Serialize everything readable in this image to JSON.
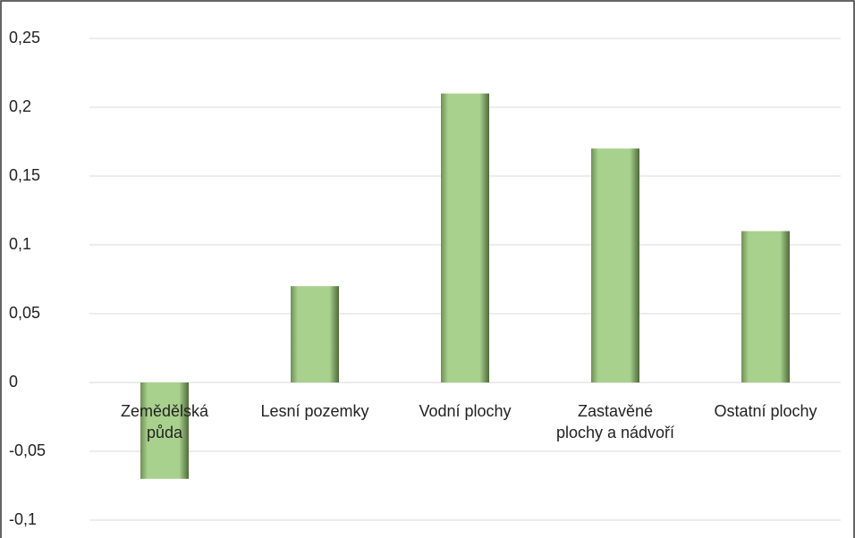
{
  "chart_data": {
    "type": "bar",
    "categories": [
      "Zemědělská půda",
      "Lesní pozemky",
      "Vodní plochy",
      "Zastavěné plochy a nádvoří",
      "Ostatní plochy"
    ],
    "values": [
      -0.07,
      0.07,
      0.21,
      0.17,
      0.11
    ],
    "color": "#a9d18e",
    "ylim": [
      -0.1,
      0.25
    ],
    "yticks": [
      {
        "value": -0.1,
        "label": "-0,1"
      },
      {
        "value": -0.05,
        "label": "-0,05"
      },
      0,
      {
        "value": 0.05,
        "label": "0,05"
      },
      {
        "value": 0.1,
        "label": "0,1"
      },
      {
        "value": 0.15,
        "label": "0,15"
      },
      {
        "value": 0.2,
        "label": "0,2"
      },
      {
        "value": 0.25,
        "label": "0,25"
      }
    ],
    "grid": true
  }
}
